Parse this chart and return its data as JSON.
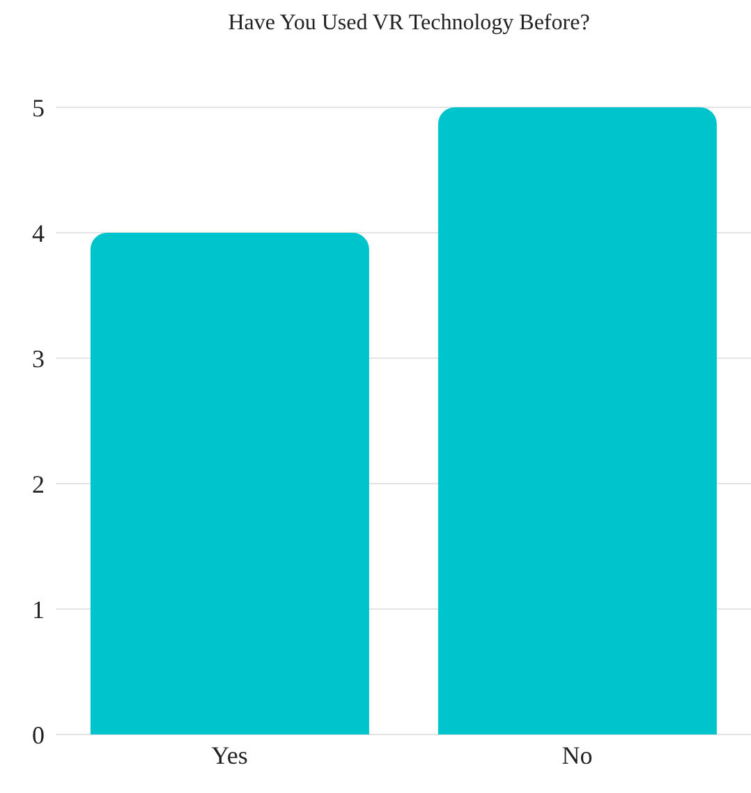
{
  "chart_data": {
    "type": "bar",
    "title": "Have You Used VR Technology Before?",
    "categories": [
      "Yes",
      "No"
    ],
    "values": [
      4,
      5
    ],
    "color": "#00c4cc",
    "ylim": [
      0,
      5
    ],
    "yticks": [
      0,
      1,
      2,
      3,
      4,
      5
    ],
    "grid": "y"
  }
}
